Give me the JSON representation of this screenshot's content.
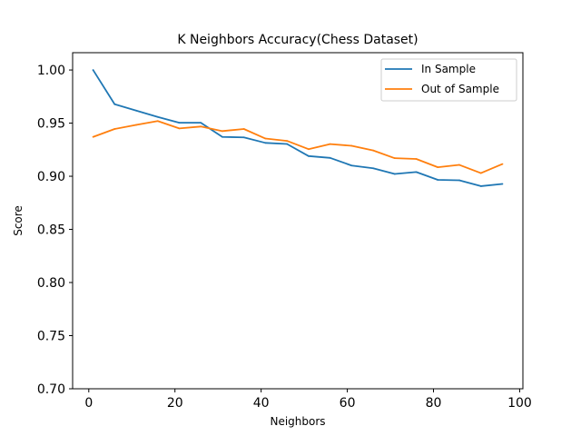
{
  "chart_data": {
    "type": "line",
    "title": "K Neighbors Accuracy(Chess Dataset)",
    "xlabel": "Neighbors",
    "ylabel": "Score",
    "xlim": [
      -3.75,
      100.75
    ],
    "ylim": [
      0.7,
      1.0163
    ],
    "x_ticks": [
      0,
      20,
      40,
      60,
      80,
      100
    ],
    "x_tick_labels": [
      "0",
      "20",
      "40",
      "60",
      "80",
      "100"
    ],
    "y_ticks": [
      0.7,
      0.75,
      0.8,
      0.85,
      0.9,
      0.95,
      1.0
    ],
    "y_tick_labels": [
      "0.70",
      "0.75",
      "0.80",
      "0.85",
      "0.90",
      "0.95",
      "1.00"
    ],
    "grid": false,
    "legend_position": "top-right",
    "x": [
      1,
      6,
      11,
      16,
      21,
      26,
      31,
      36,
      41,
      46,
      51,
      56,
      61,
      66,
      71,
      76,
      81,
      86,
      91,
      96
    ],
    "series": [
      {
        "name": "In Sample",
        "color": "#1f77b4",
        "values": [
          1.0,
          0.9678,
          0.9618,
          0.9558,
          0.9504,
          0.9504,
          0.937,
          0.9366,
          0.9314,
          0.9304,
          0.919,
          0.9173,
          0.9101,
          0.9075,
          0.9022,
          0.904,
          0.8966,
          0.8962,
          0.8907,
          0.8928
        ]
      },
      {
        "name": "Out of Sample",
        "color": "#ff7f0e",
        "values": [
          0.937,
          0.9445,
          0.9483,
          0.952,
          0.945,
          0.9468,
          0.9425,
          0.9445,
          0.9355,
          0.9333,
          0.9255,
          0.9303,
          0.9287,
          0.9243,
          0.917,
          0.9163,
          0.9085,
          0.9107,
          0.903,
          0.9115
        ]
      }
    ]
  }
}
